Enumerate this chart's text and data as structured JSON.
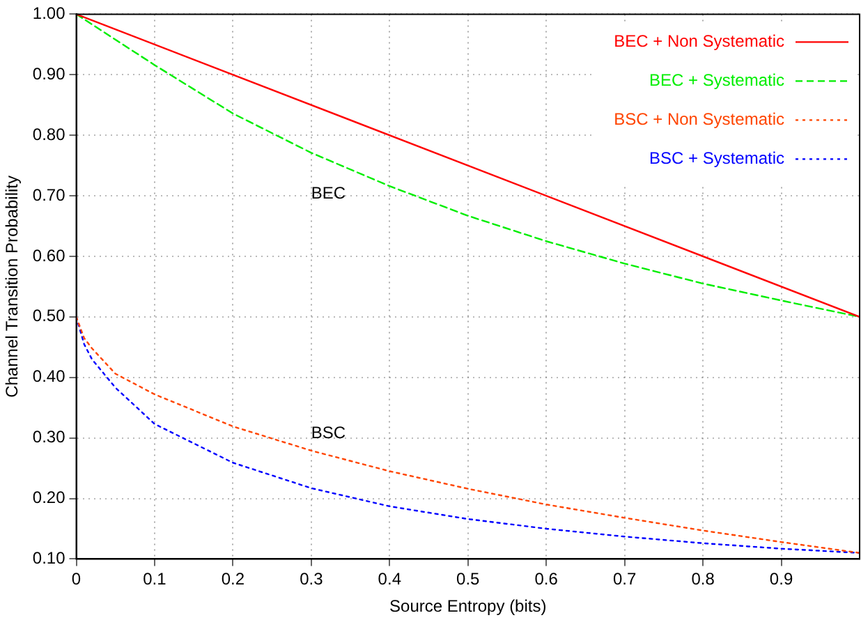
{
  "chart_data": {
    "type": "line",
    "xlabel": "Source Entropy (bits)",
    "ylabel": "Channel Transition Probability",
    "xlim": [
      0,
      1
    ],
    "xticks": [
      0,
      0.1,
      0.2,
      0.3,
      0.4,
      0.5,
      0.6,
      0.7,
      0.8,
      0.9
    ],
    "ylim": [
      0.1,
      1
    ],
    "yticks": [
      {
        "value": 0.1,
        "label": "0.10"
      },
      {
        "value": 0.2,
        "label": "0.20"
      },
      {
        "value": 0.3,
        "label": "0.30"
      },
      {
        "value": 0.4,
        "label": "0.40"
      },
      {
        "value": 0.5,
        "label": "0.50"
      },
      {
        "value": 0.6,
        "label": "0.60"
      },
      {
        "value": 0.7,
        "label": "0.70"
      },
      {
        "value": 0.8,
        "label": "0.80"
      },
      {
        "value": 0.9,
        "label": "0.90"
      },
      {
        "value": 1,
        "label": "1.00"
      }
    ],
    "grid": true,
    "legend": "top right",
    "marker": "none",
    "series": [
      {
        "name": "BEC + Non Systematic",
        "color": "#ff0000",
        "line_style": "solid",
        "x": [
          0,
          0.5,
          1
        ],
        "values": [
          1,
          0.75,
          0.5
        ]
      },
      {
        "name": "BEC + Systematic",
        "color": "#00ee00",
        "line_style": "dashed",
        "x": [
          0,
          0.1,
          0.2,
          0.3,
          0.4,
          0.5,
          0.6,
          0.7,
          0.8,
          0.9,
          1
        ],
        "values": [
          1,
          0.916,
          0.836,
          0.771,
          0.716,
          0.667,
          0.625,
          0.588,
          0.555,
          0.527,
          0.5
        ]
      },
      {
        "name": "BSC + Non Systematic",
        "color": "#ff4500",
        "line_style": "dotted",
        "x": [
          0,
          0.01,
          0.02,
          0.05,
          0.1,
          0.2,
          0.3,
          0.4,
          0.5,
          0.6,
          0.7,
          0.8,
          0.9,
          1
        ],
        "values": [
          0.5,
          0.465,
          0.448,
          0.406,
          0.372,
          0.319,
          0.279,
          0.245,
          0.216,
          0.19,
          0.168,
          0.147,
          0.128,
          0.11
        ]
      },
      {
        "name": "BSC + Systematic",
        "color": "#0000ff",
        "line_style": "dotted",
        "x": [
          0,
          0.01,
          0.02,
          0.05,
          0.1,
          0.2,
          0.3,
          0.4,
          0.5,
          0.6,
          0.7,
          0.8,
          0.9,
          1
        ],
        "values": [
          0.5,
          0.455,
          0.43,
          0.383,
          0.323,
          0.259,
          0.217,
          0.187,
          0.166,
          0.15,
          0.137,
          0.126,
          0.117,
          0.11
        ]
      }
    ],
    "annotations": [
      "BEC",
      "BSC"
    ]
  }
}
